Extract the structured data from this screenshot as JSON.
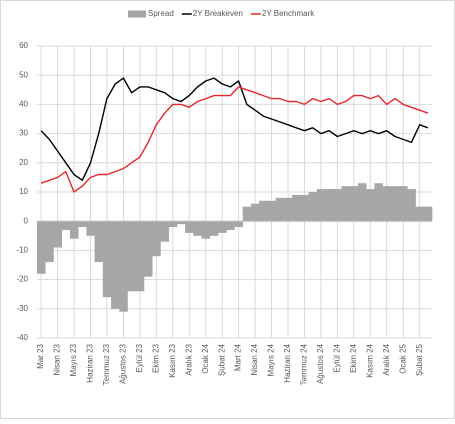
{
  "chart_data": {
    "type": "combo",
    "categories": [
      "Mar 23",
      null,
      "Nisan 23",
      null,
      "Mayıs 23",
      null,
      "Haziran 23",
      null,
      "Temmuz 23",
      null,
      "Ağustos 23",
      null,
      "Eylül 23",
      null,
      "Ekim 23",
      null,
      "Kasım 23",
      null,
      "Aralık 23",
      null,
      "Ocak 24",
      null,
      "Şubat 24",
      null,
      "Mart 24",
      null,
      "Nisan 24",
      null,
      "Mayıs 24",
      null,
      "Haziran 24",
      null,
      "Temmuz 24",
      null,
      "Ağustos 24",
      null,
      "Eylül 24",
      null,
      "Ekim 24",
      null,
      "Kasım 24",
      null,
      "Aralık 24",
      null,
      "Ocak 25",
      null,
      "Şubat 25",
      null
    ],
    "series": [
      {
        "name": "Spread",
        "type": "bar",
        "color": "#a6a6a6",
        "values": [
          -18,
          -14,
          -9,
          -3,
          -6,
          -2,
          -5,
          -14,
          -26,
          -30,
          -31,
          -24,
          -24,
          -19,
          -12,
          -7,
          -2,
          -1,
          -4,
          -5,
          -6,
          -5,
          -4,
          -3,
          -2,
          5,
          6,
          7,
          7,
          8,
          8,
          9,
          9,
          10,
          11,
          11,
          11,
          12,
          12,
          13,
          11,
          13,
          12,
          12,
          12,
          11,
          5,
          5
        ]
      },
      {
        "name": "2Y Breakeven",
        "type": "line",
        "color": "#000000",
        "values": [
          31,
          28,
          24,
          20,
          16,
          14,
          20,
          30,
          42,
          47,
          49,
          44,
          46,
          46,
          45,
          44,
          42,
          41,
          43,
          46,
          48,
          49,
          47,
          46,
          48,
          40,
          38,
          36,
          35,
          34,
          33,
          32,
          31,
          32,
          30,
          31,
          29,
          30,
          31,
          30,
          31,
          30,
          31,
          29,
          28,
          27,
          33,
          32
        ]
      },
      {
        "name": "2Y Benchmark",
        "type": "line",
        "color": "#e8262a",
        "values": [
          13,
          14,
          15,
          17,
          10,
          12,
          15,
          16,
          16,
          17,
          18,
          20,
          22,
          27,
          33,
          37,
          40,
          40,
          39,
          41,
          42,
          43,
          43,
          43,
          46,
          45,
          44,
          43,
          42,
          42,
          41,
          41,
          40,
          42,
          41,
          42,
          40,
          41,
          43,
          43,
          42,
          43,
          40,
          42,
          40,
          39,
          38,
          37
        ]
      }
    ],
    "ylim": [
      -40,
      60
    ],
    "yticks": [
      -40,
      -30,
      -20,
      -10,
      0,
      10,
      20,
      30,
      40,
      50,
      60
    ],
    "grid": true
  }
}
